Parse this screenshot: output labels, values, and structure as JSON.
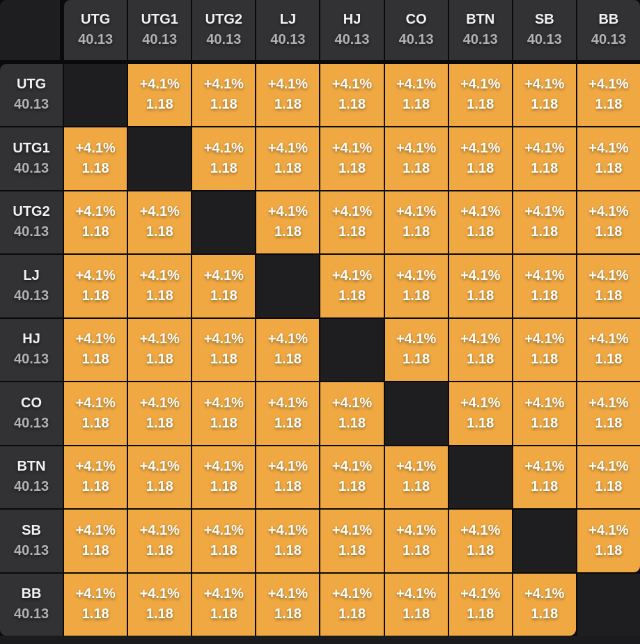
{
  "table": {
    "columns": [
      {
        "label": "UTG",
        "value": "40.13"
      },
      {
        "label": "UTG1",
        "value": "40.13"
      },
      {
        "label": "UTG2",
        "value": "40.13"
      },
      {
        "label": "LJ",
        "value": "40.13"
      },
      {
        "label": "HJ",
        "value": "40.13"
      },
      {
        "label": "CO",
        "value": "40.13"
      },
      {
        "label": "BTN",
        "value": "40.13"
      },
      {
        "label": "SB",
        "value": "40.13"
      },
      {
        "label": "BB",
        "value": "40.13"
      }
    ],
    "rows": [
      {
        "label": "UTG",
        "value": "40.13"
      },
      {
        "label": "UTG1",
        "value": "40.13"
      },
      {
        "label": "UTG2",
        "value": "40.13"
      },
      {
        "label": "LJ",
        "value": "40.13"
      },
      {
        "label": "HJ",
        "value": "40.13"
      },
      {
        "label": "CO",
        "value": "40.13"
      },
      {
        "label": "BTN",
        "value": "40.13"
      },
      {
        "label": "SB",
        "value": "40.13"
      },
      {
        "label": "BB",
        "value": "40.13"
      }
    ],
    "cells": {
      "ev": "+4.1%",
      "ratio": "1.18",
      "diagonal": "empty"
    }
  },
  "colors": {
    "background": "#1B1B1D",
    "grid_line": "#0A0A0A",
    "header_cell": "#323234",
    "empty_cell": "#1E1E20",
    "data_cell": "#F0A843",
    "header_label": "#F2F2F2",
    "header_value": "#B2B2B4",
    "cell_text": "#FFFFFF"
  }
}
